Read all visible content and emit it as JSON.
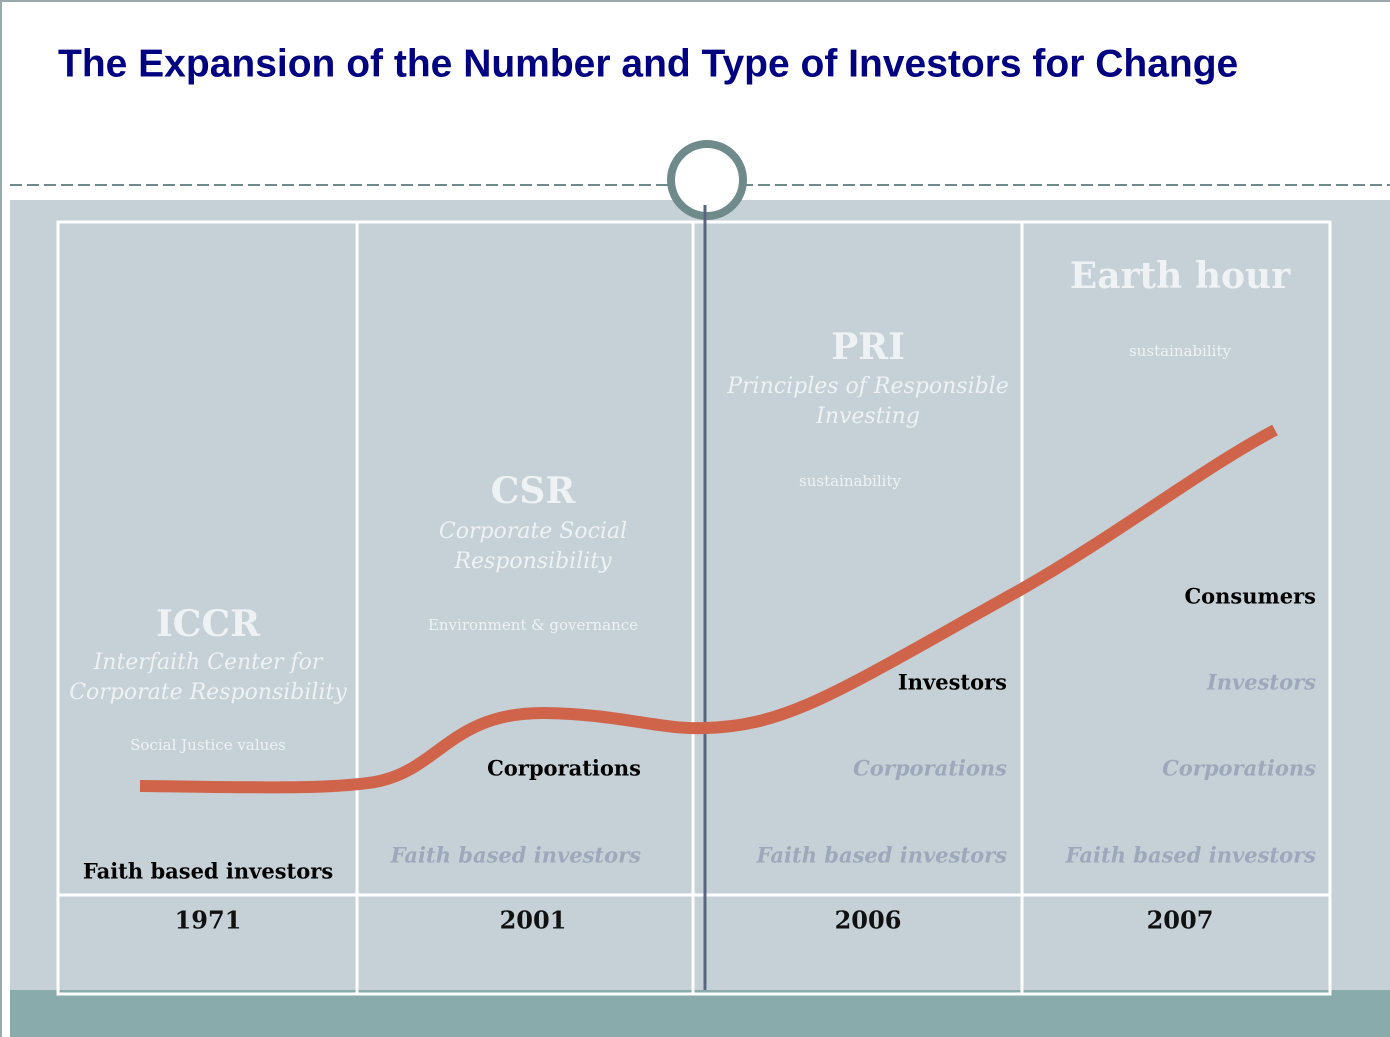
{
  "title": "The Expansion of the Number and Type of Investors for Change",
  "columns": [
    {
      "heading": "ICCR",
      "subtitle": [
        "Interfaith Center for",
        "Corporate Responsibility"
      ],
      "note": "Social Justice values",
      "new_group": "Faith based investors",
      "earlier_groups": [],
      "year": "1971"
    },
    {
      "heading": "CSR",
      "subtitle": [
        "Corporate Social",
        "Responsibility"
      ],
      "note": "Environment & governance",
      "new_group": "Corporations",
      "earlier_groups": [
        "Faith based investors"
      ],
      "year": "2001"
    },
    {
      "heading": "PRI",
      "subtitle": [
        "Principles of Responsible",
        "Investing"
      ],
      "note": "sustainability",
      "new_group": "Investors",
      "earlier_groups": [
        "Corporations",
        "Faith based investors"
      ],
      "year": "2006"
    },
    {
      "heading": "Earth hour",
      "subtitle": [],
      "note": "sustainability",
      "new_group": "Consumers",
      "earlier_groups": [
        "Investors",
        "Corporations",
        "Faith based investors"
      ],
      "year": "2007"
    }
  ]
}
